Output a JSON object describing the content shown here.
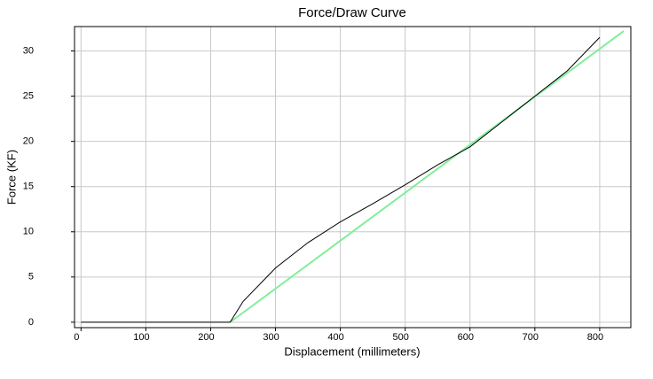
{
  "chart_data": {
    "type": "line",
    "title": "Force/Draw Curve",
    "x_label": "Displacement (millimeters)",
    "y_label": "Force (KF)",
    "series": [
      {
        "color": "#000000",
        "x": [
          0,
          230,
          250,
          300,
          350,
          400,
          450,
          500,
          550,
          600,
          650,
          700,
          750,
          800
        ],
        "values": [
          0,
          0,
          2.3,
          6,
          8.8,
          11.1,
          13.1,
          15.2,
          17.4,
          19.4,
          22.2,
          25,
          27.8,
          31.5
        ]
      },
      {
        "color": "#80ee9a",
        "x": [
          230,
          837
        ],
        "values": [
          0,
          32.2
        ]
      }
    ],
    "xlim": [
      -10,
      848
    ],
    "ylim": [
      -0.6,
      32.7
    ],
    "xticks": [
      0,
      100,
      200,
      300,
      400,
      500,
      600,
      700,
      800
    ],
    "yticks": [
      0,
      5,
      10,
      15,
      20,
      25,
      30
    ],
    "grid": true
  }
}
